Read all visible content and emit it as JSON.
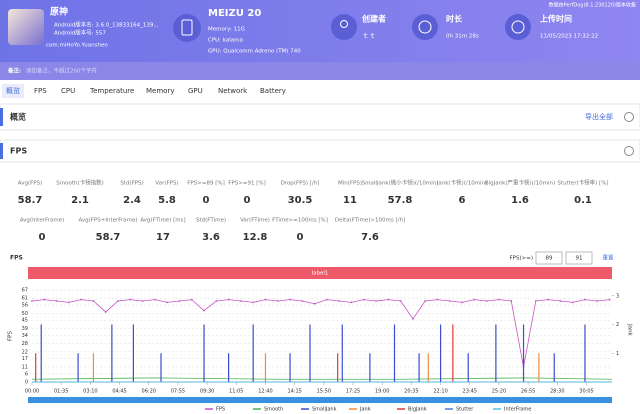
{
  "header": {
    "app_name": "原神",
    "app_version_name": "Android版本名: 3.6.0_13833164_139...",
    "app_version_code": "Android版本号: 557",
    "package": "com.miHoYo.Yuanshen",
    "device": "MEIZU 20",
    "memory": "Memory: 11G",
    "cpu": "CPU: kalama",
    "gpu": "GPU: Qualcomm Adreno (TM) 740",
    "creator_label": "创建者",
    "creator": "ｔｔ",
    "duration_label": "时长",
    "duration": "0h 31m 28s",
    "upload_label": "上传时间",
    "upload_time": "11/05/2023 17:32:22",
    "collector": "数据由PerfDog(8.1.230120)版本收集"
  },
  "note": {
    "label": "备注:",
    "placeholder": "添加备注，不超过200个字符"
  },
  "tabs": [
    "概览",
    "FPS",
    "CPU",
    "Temperature",
    "Memory",
    "GPU",
    "Network",
    "Battery"
  ],
  "overview": {
    "title": "概览",
    "export": "导出全部"
  },
  "fps_section": {
    "title": "FPS",
    "metrics": [
      {
        "label": "Avg(FPS)",
        "value": 58.7
      },
      {
        "label": "Smooth(卡顿指数)",
        "value": 2.1
      },
      {
        "label": "Std(FPS)",
        "value": 2.4
      },
      {
        "label": "Var(FPS)",
        "value": 5.8
      },
      {
        "label": "FPS>=89 [%]",
        "value": 0
      },
      {
        "label": "FPS>=91 [%]",
        "value": 0
      },
      {
        "label": "Drop(FPS) [/h]",
        "value": 30.5
      },
      {
        "label": "Min(FPS)",
        "value": 11
      },
      {
        "label": "SmallJank(微小卡顿)(/10min)",
        "value": 57.8
      },
      {
        "label": "Jank(卡顿)(/10min)",
        "value": 6
      },
      {
        "label": "BigJank(严重卡顿)(/10min)",
        "value": 1.6
      },
      {
        "label": "Stutter(卡顿率) [%]",
        "value": 0.1
      },
      {
        "label": "Avg(InterFrame)",
        "value": 0
      },
      {
        "label": "Avg(FPS+InterFrame)",
        "value": 58.7
      },
      {
        "label": "Avg(FTime) [ms]",
        "value": 17
      },
      {
        "label": "Std(FTime)",
        "value": 3.6
      },
      {
        "label": "Var(FTime)",
        "value": 12.8
      },
      {
        "label": "FTime>=100ms [%]",
        "value": 0
      },
      {
        "label": "Delta(FTime)>100ms [/h]",
        "value": 7.6
      }
    ]
  },
  "chart_data": {
    "type": "line",
    "title": "FPS",
    "threshold_label": "FPS(>=)",
    "thresholds": [
      89,
      91
    ],
    "reset": "重置",
    "band_label": "label1",
    "ylabel": "FPS",
    "y2label": "Jank",
    "xlim": [
      0,
      1888
    ],
    "ylim": [
      0,
      67
    ],
    "y2lim": [
      0,
      3.2
    ],
    "yticks": [
      0,
      6,
      11,
      17,
      22,
      28,
      34,
      39,
      45,
      50,
      56,
      61,
      67
    ],
    "y2ticks": [
      1,
      2,
      3
    ],
    "xticks": [
      {
        "value": 0,
        "label": "00:00"
      },
      {
        "value": 95,
        "label": "01:35"
      },
      {
        "value": 190,
        "label": "03:10"
      },
      {
        "value": 285,
        "label": "04:45"
      },
      {
        "value": 380,
        "label": "06:20"
      },
      {
        "value": 475,
        "label": "07:55"
      },
      {
        "value": 570,
        "label": "09:30"
      },
      {
        "value": 665,
        "label": "11:05"
      },
      {
        "value": 760,
        "label": "12:40"
      },
      {
        "value": 855,
        "label": "14:15"
      },
      {
        "value": 950,
        "label": "15:50"
      },
      {
        "value": 1045,
        "label": "17:25"
      },
      {
        "value": 1140,
        "label": "19:00"
      },
      {
        "value": 1235,
        "label": "20:35"
      },
      {
        "value": 1330,
        "label": "22:10"
      },
      {
        "value": 1425,
        "label": "23:45"
      },
      {
        "value": 1520,
        "label": "25:20"
      },
      {
        "value": 1615,
        "label": "26:55"
      },
      {
        "value": 1710,
        "label": "28:30"
      },
      {
        "value": 1805,
        "label": "30:05"
      }
    ],
    "grid": true,
    "series": [
      {
        "name": "FPS",
        "color": "#c653c6",
        "x": [
          0,
          40,
          80,
          120,
          160,
          200,
          240,
          280,
          320,
          360,
          400,
          440,
          480,
          520,
          560,
          600,
          640,
          680,
          720,
          760,
          800,
          840,
          880,
          920,
          960,
          1000,
          1040,
          1080,
          1120,
          1160,
          1200,
          1240,
          1280,
          1320,
          1360,
          1400,
          1440,
          1480,
          1520,
          1560,
          1600,
          1640,
          1680,
          1720,
          1760,
          1800,
          1840,
          1880
        ],
        "values": [
          59,
          60,
          59,
          58,
          60,
          59,
          51,
          59,
          60,
          59,
          60,
          58,
          59,
          60,
          52,
          59,
          60,
          59,
          58,
          60,
          59,
          60,
          59,
          57,
          60,
          59,
          58,
          60,
          59,
          60,
          59,
          46,
          59,
          60,
          59,
          58,
          60,
          59,
          60,
          59,
          11,
          59,
          60,
          59,
          58,
          60,
          59,
          60
        ]
      },
      {
        "name": "Smooth",
        "color": "#4caf50",
        "x": [
          0,
          400,
          800,
          1200,
          1600,
          1888
        ],
        "values": [
          2,
          3,
          2,
          2,
          3,
          2
        ]
      },
      {
        "name": "SmallJank",
        "color": "#3b4bd6",
        "axis": "y2",
        "bars": true,
        "x": [
          30,
          150,
          260,
          330,
          420,
          560,
          640,
          720,
          840,
          905,
          1010,
          1100,
          1180,
          1260,
          1330,
          1420,
          1510,
          1600,
          1700,
          1800
        ],
        "values": [
          2,
          1,
          2,
          2,
          1,
          2,
          1,
          2,
          1,
          2,
          2,
          1,
          2,
          1,
          2,
          1,
          2,
          2,
          1,
          2
        ]
      },
      {
        "name": "Jank",
        "color": "#f08a3c",
        "axis": "y2",
        "bars": true,
        "x": [
          200,
          760,
          1290,
          1650
        ],
        "values": [
          1,
          1,
          1,
          1
        ]
      },
      {
        "name": "BigJank",
        "color": "#e53935",
        "axis": "y2",
        "bars": true,
        "x": [
          12,
          995,
          1370
        ],
        "values": [
          1,
          1,
          2
        ]
      },
      {
        "name": "Stutter",
        "color": "#4a7bd9",
        "x": [
          0,
          1888
        ],
        "values": [
          0,
          0
        ]
      },
      {
        "name": "InterFrame",
        "color": "#4fc3e0",
        "x": [
          0,
          1888
        ],
        "values": [
          0,
          0
        ]
      }
    ]
  }
}
